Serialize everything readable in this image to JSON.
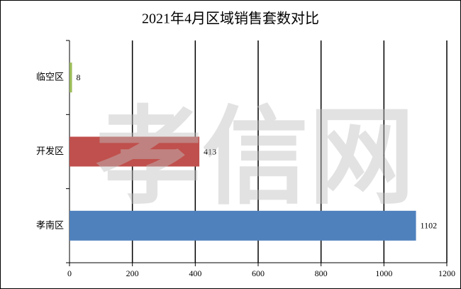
{
  "chart_data": {
    "type": "hbar",
    "title": "2021年4月区域销售套数对比",
    "categories": [
      "临空区",
      "开发区",
      "孝南区"
    ],
    "values": [
      8,
      413,
      1102
    ],
    "colors": [
      "#9bbb59",
      "#c0504d",
      "#4f81bd"
    ],
    "xlim": [
      0,
      1200
    ],
    "xticks": [
      0,
      200,
      400,
      600,
      800,
      1000,
      1200
    ],
    "grid": true,
    "watermark": "孝信网"
  }
}
